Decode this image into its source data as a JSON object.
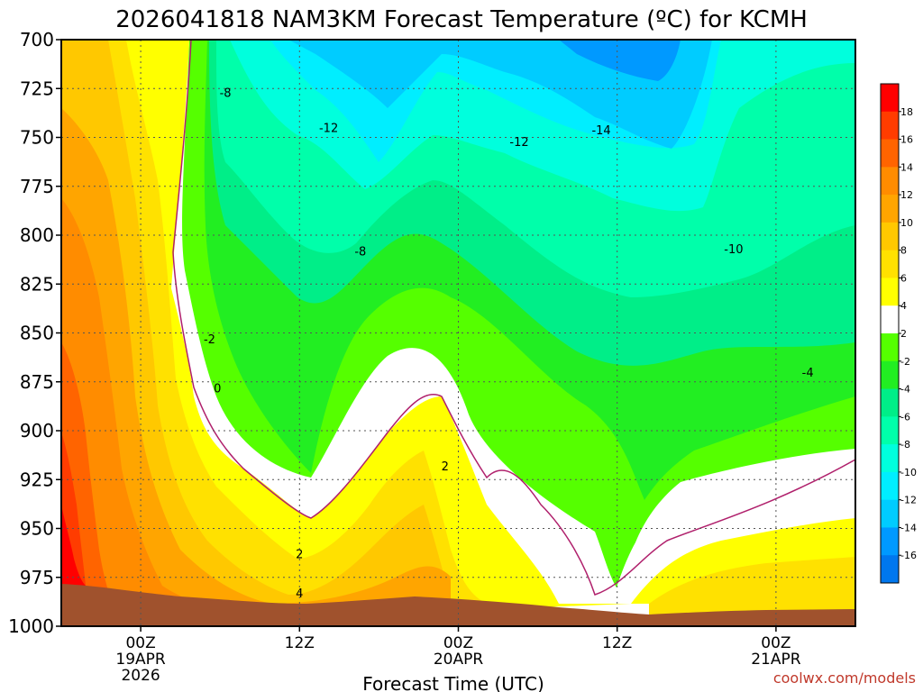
{
  "chart_data": {
    "type": "heatmap",
    "title": "2026041818 NAM3KM Forecast Temperature (ºC) for KCMH",
    "xlabel": "Forecast Time (UTC)",
    "ylabel": "",
    "y_ticks": [
      "700",
      "725",
      "750",
      "775",
      "800",
      "825",
      "850",
      "875",
      "900",
      "925",
      "950",
      "975",
      "1000"
    ],
    "y_range": [
      700,
      1000
    ],
    "x_ticks": [
      {
        "hour": 6,
        "lines": [
          "00Z",
          "19APR",
          "2026"
        ]
      },
      {
        "hour": 18,
        "lines": [
          "12Z"
        ]
      },
      {
        "hour": 30,
        "lines": [
          "00Z",
          "20APR"
        ]
      },
      {
        "hour": 42,
        "lines": [
          "12Z"
        ]
      },
      {
        "hour": 54,
        "lines": [
          "00Z",
          "21APR"
        ]
      }
    ],
    "x_range": [
      0,
      60
    ],
    "colorbar": {
      "levels": [
        "18",
        "16",
        "14",
        "12",
        "10",
        "8",
        "6",
        "4",
        "2",
        "-2",
        "-4",
        "-6",
        "-8",
        "-10",
        "-12",
        "-14",
        "-16"
      ],
      "colors": [
        "#ff0000",
        "#ff3c00",
        "#ff6400",
        "#ff8c00",
        "#ffa500",
        "#ffc800",
        "#ffe100",
        "#ffff00",
        "#ffffff",
        "#55ff00",
        "#22ee22",
        "#00ee88",
        "#00ffaa",
        "#00ffdd",
        "#00eeff",
        "#00ccff",
        "#0099ff",
        "#0077ee"
      ]
    },
    "contour_labels": [
      {
        "value": "-8",
        "hour": 12.4,
        "p": 727
      },
      {
        "value": "-12",
        "hour": 20.2,
        "p": 745
      },
      {
        "value": "-14",
        "hour": 40.8,
        "p": 746
      },
      {
        "value": "-12",
        "hour": 34.6,
        "p": 752
      },
      {
        "value": "-8",
        "hour": 22.6,
        "p": 808
      },
      {
        "value": "-10",
        "hour": 50.8,
        "p": 807
      },
      {
        "value": "-2",
        "hour": 11.2,
        "p": 853
      },
      {
        "value": "-4",
        "hour": 56.4,
        "p": 870
      },
      {
        "value": "0",
        "hour": 11.8,
        "p": 878
      },
      {
        "value": "2",
        "hour": 29.0,
        "p": 918
      },
      {
        "value": "2",
        "hour": 18.0,
        "p": 963
      },
      {
        "value": "4",
        "hour": 18.0,
        "p": 983
      }
    ]
  },
  "credit": "coolwx.com/models"
}
